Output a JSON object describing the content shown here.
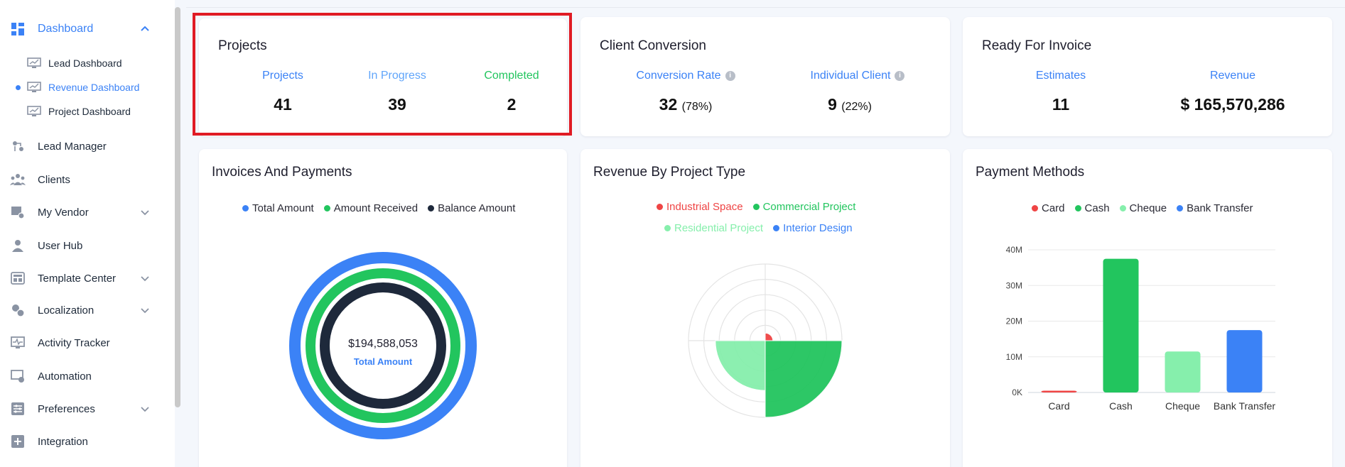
{
  "sidebar": {
    "dashboard": {
      "label": "Dashboard",
      "icon": "dashboard-grid-icon"
    },
    "sub_items": [
      {
        "label": "Lead Dashboard",
        "active": false
      },
      {
        "label": "Revenue Dashboard",
        "active": true
      },
      {
        "label": "Project Dashboard",
        "active": false
      }
    ],
    "items": [
      {
        "label": "Lead Manager",
        "icon": "lead-manager-icon",
        "has_chevron": false
      },
      {
        "label": "Clients",
        "icon": "clients-icon",
        "has_chevron": false
      },
      {
        "label": "My Vendor",
        "icon": "vendor-icon",
        "has_chevron": true
      },
      {
        "label": "User Hub",
        "icon": "user-icon",
        "has_chevron": false
      },
      {
        "label": "Template Center",
        "icon": "template-icon",
        "has_chevron": true
      },
      {
        "label": "Localization",
        "icon": "localization-icon",
        "has_chevron": true
      },
      {
        "label": "Activity Tracker",
        "icon": "activity-icon",
        "has_chevron": false
      },
      {
        "label": "Automation",
        "icon": "automation-icon",
        "has_chevron": false
      },
      {
        "label": "Preferences",
        "icon": "preferences-icon",
        "has_chevron": true
      },
      {
        "label": "Integration",
        "icon": "integration-icon",
        "has_chevron": false
      }
    ]
  },
  "projects_card": {
    "title": "Projects",
    "stats": [
      {
        "label": "Projects",
        "value": "41",
        "color": "#3b82f6"
      },
      {
        "label": "In Progress",
        "value": "39",
        "color": "#60a5fa"
      },
      {
        "label": "Completed",
        "value": "2",
        "color": "#22c55e"
      }
    ]
  },
  "conversion_card": {
    "title": "Client Conversion",
    "stats": [
      {
        "label": "Conversion Rate",
        "value": "32",
        "pct": "(78%)"
      },
      {
        "label": "Individual Client",
        "value": "9",
        "pct": "(22%)"
      }
    ]
  },
  "invoice_card": {
    "title": "Ready For Invoice",
    "stats": [
      {
        "label": "Estimates",
        "value": "11"
      },
      {
        "label": "Revenue",
        "value": "$ 165,570,286"
      }
    ]
  },
  "invoices_payments": {
    "title": "Invoices And Payments",
    "legend": [
      {
        "label": "Total Amount",
        "color": "#3b82f6"
      },
      {
        "label": "Amount Received",
        "color": "#22c55e"
      },
      {
        "label": "Balance Amount",
        "color": "#1e293b"
      }
    ],
    "center_value": "$194,588,053",
    "center_label": "Total Amount"
  },
  "revenue_by_type": {
    "title": "Revenue By Project Type",
    "legend": [
      {
        "label": "Industrial Space",
        "color": "#ef4444"
      },
      {
        "label": "Commercial Project",
        "color": "#22c55e"
      },
      {
        "label": "Residential Project",
        "color": "#86efac"
      },
      {
        "label": "Interior Design",
        "color": "#3b82f6"
      }
    ]
  },
  "chart_data": [
    {
      "type": "pie",
      "variant": "polar-area",
      "labels": [
        "Industrial Space",
        "Commercial Project",
        "Residential Project",
        "Interior Design"
      ],
      "values": [
        0.1,
        1.0,
        0.65,
        0
      ],
      "colors": [
        "#ef4444",
        "#22c55e",
        "#86efac",
        "#3b82f6"
      ],
      "rings": 5
    },
    {
      "type": "bar",
      "title": "Payment Methods",
      "categories": [
        "Card",
        "Cash",
        "Cheque",
        "Bank Transfer"
      ],
      "values": [
        0.5,
        37.5,
        11.5,
        17.5
      ],
      "colors": [
        "#ef4444",
        "#22c55e",
        "#86efac",
        "#3b82f6"
      ],
      "yticks": [
        "0K",
        "10M",
        "20M",
        "30M",
        "40M"
      ],
      "ylim": [
        0,
        40
      ],
      "legend": "top",
      "grid": true
    }
  ]
}
